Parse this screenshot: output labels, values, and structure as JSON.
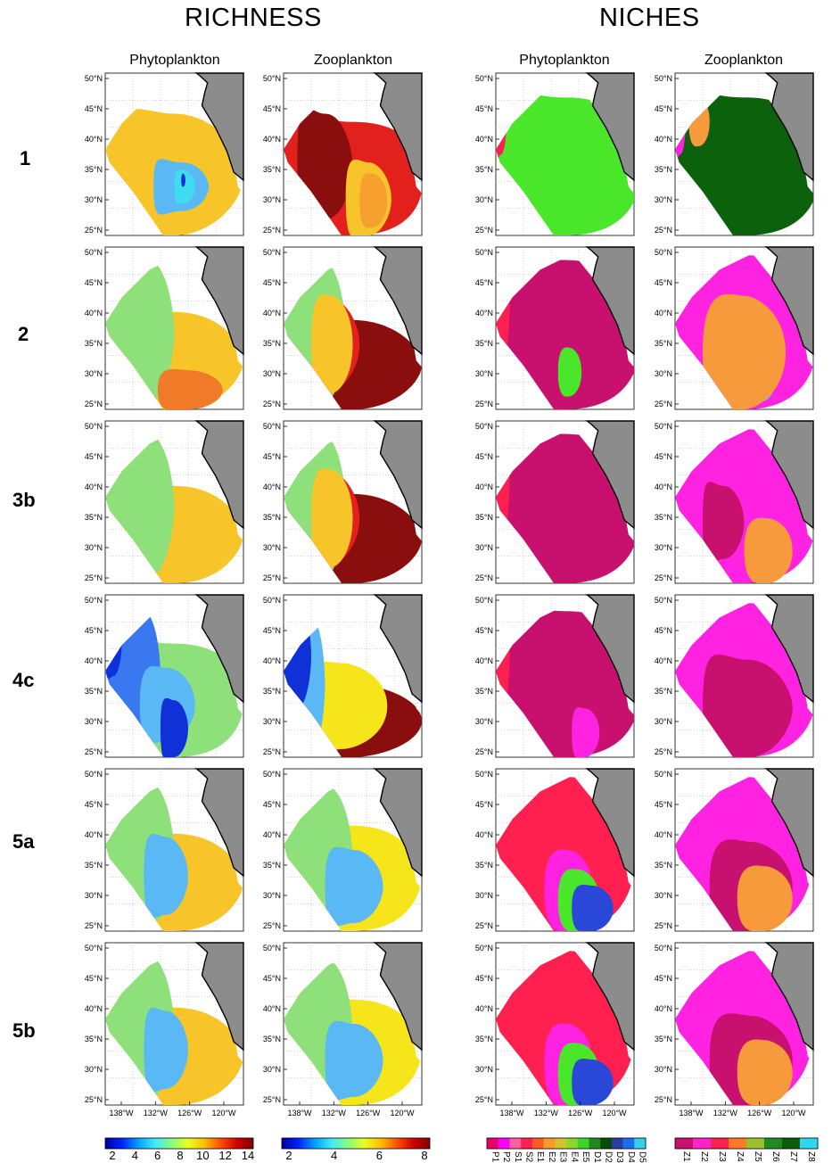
{
  "headers": {
    "richness": "RICHNESS",
    "niches": "NICHES"
  },
  "columns": [
    "Phytoplankton",
    "Zooplankton",
    "Phytoplankton",
    "Zooplankton"
  ],
  "rows": [
    "1",
    "2",
    "3b",
    "4c",
    "5a",
    "5b"
  ],
  "lat_ticks": [
    "50°N",
    "45°N",
    "40°N",
    "35°N",
    "30°N",
    "25°N"
  ],
  "lon_ticks": [
    "138°W",
    "132°W",
    "126°W",
    "120°W"
  ],
  "colorbars": [
    {
      "type": "continuous",
      "ticks": [
        "2",
        "4",
        "6",
        "8",
        "10",
        "12",
        "14"
      ]
    },
    {
      "type": "continuous",
      "ticks": [
        "2",
        "4",
        "6",
        "8"
      ]
    },
    {
      "type": "categorical",
      "labels": [
        "P1",
        "P2",
        "S1",
        "S2",
        "E1",
        "E2",
        "E3",
        "E4",
        "E5",
        "D1",
        "D2",
        "D3",
        "D4",
        "D5"
      ],
      "colors": [
        "#e8006f",
        "#ff00ff",
        "#ff5fa0",
        "#ff2050",
        "#ff5a24",
        "#ff9a2a",
        "#d3c42a",
        "#8bd72a",
        "#3cd52a",
        "#1e8a1e",
        "#064d06",
        "#2c3ca5",
        "#1b6df0",
        "#2fd0f0"
      ]
    },
    {
      "type": "categorical",
      "labels": [
        "Z1",
        "Z2",
        "Z3",
        "Z4",
        "Z5",
        "Z6",
        "Z7",
        "Z8"
      ],
      "colors": [
        "#c8106e",
        "#ff22c8",
        "#ff2050",
        "#ff7a28",
        "#9bc12a",
        "#1f8a1f",
        "#0b5c0b",
        "#2fd6f0"
      ]
    }
  ],
  "chart_data": [
    {
      "type": "heatmap",
      "panel": "richness-phytoplankton",
      "variable": "RICHNESS",
      "group": "Phytoplankton",
      "runs": [
        "1",
        "2",
        "3b",
        "4c",
        "5a",
        "5b"
      ],
      "colorbar_range": [
        1,
        14
      ]
    },
    {
      "type": "heatmap",
      "panel": "richness-zooplankton",
      "variable": "RICHNESS",
      "group": "Zooplankton",
      "runs": [
        "1",
        "2",
        "3b",
        "4c",
        "5a",
        "5b"
      ],
      "colorbar_range": [
        1,
        8
      ]
    },
    {
      "type": "heatmap",
      "panel": "niches-phytoplankton",
      "variable": "NICHES",
      "group": "Phytoplankton",
      "runs": [
        "1",
        "2",
        "3b",
        "4c",
        "5a",
        "5b"
      ]
    },
    {
      "type": "heatmap",
      "panel": "niches-zooplankton",
      "variable": "NICHES",
      "group": "Zooplankton",
      "runs": [
        "1",
        "2",
        "3b",
        "4c",
        "5a",
        "5b"
      ]
    }
  ]
}
